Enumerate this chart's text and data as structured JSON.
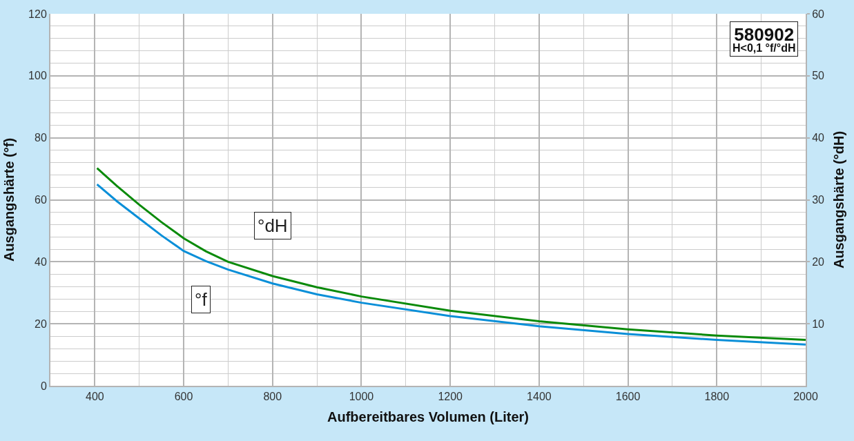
{
  "chart_data": {
    "type": "line",
    "xlabel": "Aufbereitbares Volumen (Liter)",
    "ylabel": "Ausgangshärte (°f)",
    "y2label": "Ausgangshärte (°dH)",
    "x": [
      405,
      450,
      500,
      550,
      600,
      650,
      700,
      800,
      900,
      1000,
      1200,
      1400,
      1600,
      1800,
      2000
    ],
    "series": [
      {
        "name": "°f",
        "color": "#0a8fd8",
        "values": [
          65,
          59.5,
          54,
          48.5,
          43.5,
          40.2,
          37.5,
          33,
          29.5,
          26.8,
          22.5,
          19.2,
          16.7,
          14.8,
          13.3
        ]
      },
      {
        "name": "°dH",
        "color": "#0a8a0a",
        "axis": "y2",
        "values": [
          35.1,
          32.2,
          29.2,
          26.4,
          23.8,
          21.7,
          20,
          17.7,
          15.9,
          14.4,
          12.1,
          10.4,
          9.1,
          8.1,
          7.4
        ]
      }
    ],
    "xlim": [
      300,
      2000
    ],
    "xticks": [
      400,
      600,
      800,
      1000,
      1200,
      1400,
      1600,
      1800,
      2000
    ],
    "ylim": [
      0,
      120
    ],
    "yticks": [
      0,
      20,
      40,
      60,
      80,
      100,
      120
    ],
    "y2lim": [
      0,
      60
    ],
    "y2ticks": [
      10,
      20,
      30,
      40,
      50,
      60
    ],
    "grid": true,
    "legend": false,
    "marker": "none",
    "line_style": "solid",
    "annotations": [
      "580902",
      "H<0,1 °f/°dH"
    ]
  }
}
